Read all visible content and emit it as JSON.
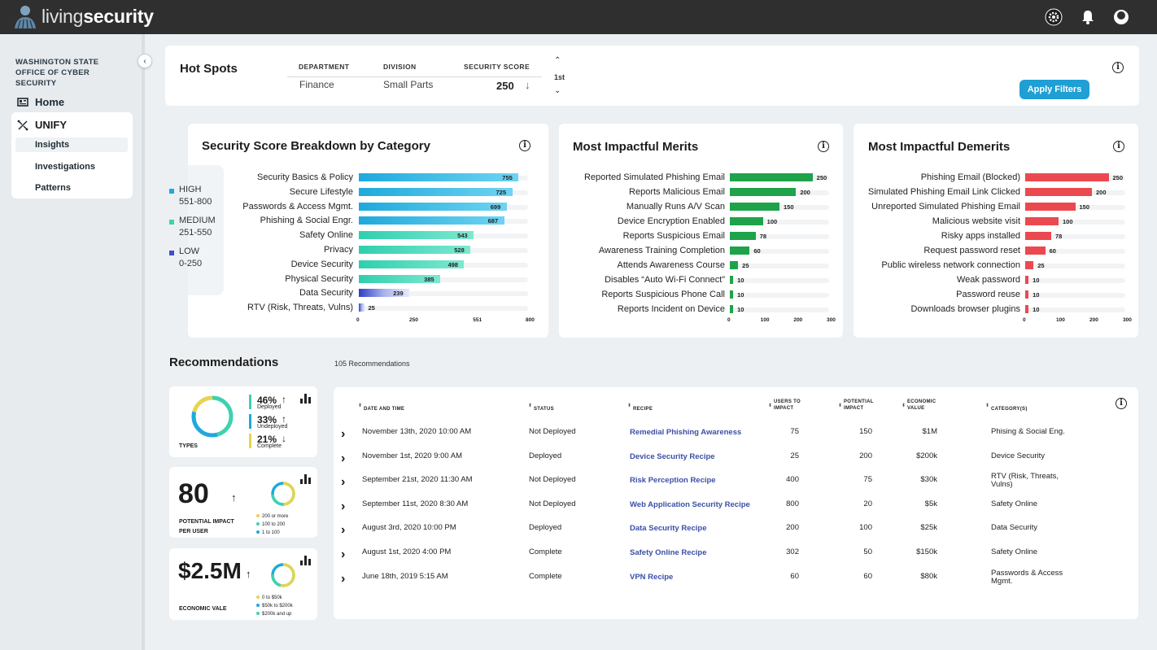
{
  "header": {
    "logo_light": "living",
    "logo_bold": "security",
    "icons": [
      "gear-icon",
      "bell-icon",
      "user-icon"
    ]
  },
  "sidebar": {
    "org": "WASHINGTON STATE OFFICE OF CYBER SECURITY",
    "home": "Home",
    "unify": "UNIFY",
    "items": [
      "Insights",
      "Investigations",
      "Patterns"
    ],
    "active": "Insights"
  },
  "hotspots": {
    "title": "Hot Spots",
    "headers": [
      "DEPARTMENT",
      "DIVISION",
      "SECURITY SCORE"
    ],
    "department": "Finance",
    "division": "Small Parts",
    "score": "250",
    "rank": "1st",
    "apply": "Apply Filters"
  },
  "breakdown": {
    "title": "Security Score Breakdown by Category",
    "legend": [
      {
        "name": "HIGH",
        "range": "551-800",
        "color": "#1fa9dc"
      },
      {
        "name": "MEDIUM",
        "range": "251-550",
        "color": "#3ed1b0"
      },
      {
        "name": "LOW",
        "range": "0-250",
        "color": "#3b4fc9"
      }
    ],
    "ticks": [
      "0",
      "250",
      "551",
      "800"
    ],
    "max": 800,
    "items": [
      {
        "label": "Security Basics & Policy",
        "value": 755,
        "level": "high"
      },
      {
        "label": "Secure Lifestyle",
        "value": 725,
        "level": "high"
      },
      {
        "label": "Passwords & Access Mgmt.",
        "value": 699,
        "level": "high"
      },
      {
        "label": "Phishing & Social Engr.",
        "value": 687,
        "level": "high"
      },
      {
        "label": "Safety Online",
        "value": 543,
        "level": "medium"
      },
      {
        "label": "Privacy",
        "value": 528,
        "level": "medium"
      },
      {
        "label": "Device Security",
        "value": 498,
        "level": "medium"
      },
      {
        "label": "Physical Security",
        "value": 385,
        "level": "medium"
      },
      {
        "label": "Data Security",
        "value": 239,
        "level": "low"
      },
      {
        "label": "RTV (Risk, Threats, Vulns)",
        "value": 25,
        "level": "low"
      }
    ]
  },
  "merits": {
    "title": "Most Impactful Merits",
    "color": "#1fa34a",
    "max": 300,
    "ticks": [
      "0",
      "100",
      "200",
      "300"
    ],
    "items": [
      {
        "label": "Reported Simulated Phishing Email",
        "value": 250
      },
      {
        "label": "Reports Malicious Email",
        "value": 200
      },
      {
        "label": "Manually Runs A/V Scan",
        "value": 150
      },
      {
        "label": "Device Encryption Enabled",
        "value": 100
      },
      {
        "label": "Reports Suspicious Email",
        "value": 78
      },
      {
        "label": "Awareness Training Completion",
        "value": 60
      },
      {
        "label": "Attends Awareness Course",
        "value": 25
      },
      {
        "label": "Disables “Auto Wi-Fi Connect”",
        "value": 10
      },
      {
        "label": "Reports Suspicious Phone Call",
        "value": 10
      },
      {
        "label": "Reports Incident on Device",
        "value": 10
      }
    ]
  },
  "demerits": {
    "title": "Most Impactful Demerits",
    "color": "#ea4a4f",
    "max": 300,
    "ticks": [
      "0",
      "100",
      "200",
      "300"
    ],
    "items": [
      {
        "label": "Phishing Email (Blocked)",
        "value": 250
      },
      {
        "label": "Simulated Phishing Email Link Clicked",
        "value": 200
      },
      {
        "label": "Unreported Simulated Phishing Email",
        "value": 150
      },
      {
        "label": "Malicious website visit",
        "value": 100
      },
      {
        "label": "Risky apps installed",
        "value": 78
      },
      {
        "label": "Request password reset",
        "value": 60
      },
      {
        "label": "Public wireless network connection",
        "value": 25
      },
      {
        "label": "Weak password",
        "value": 10
      },
      {
        "label": "Password reuse",
        "value": 10
      },
      {
        "label": "Downloads browser plugins",
        "value": 10
      }
    ]
  },
  "recommendations": {
    "title": "Recommendations",
    "count": "105 Recommendations",
    "types": {
      "label": "TYPES",
      "stats": [
        {
          "pct": "46%",
          "dir": "↑",
          "label": "Deployed",
          "color": "#3ed1b0"
        },
        {
          "pct": "33%",
          "dir": "↑",
          "label": "Undeployed",
          "color": "#1fa9dc"
        },
        {
          "pct": "21%",
          "dir": "↓",
          "label": "Complete",
          "color": "#e6d44e"
        }
      ]
    },
    "impact": {
      "value": "80",
      "dir": "↑",
      "label1": "POTENTIAL IMPACT",
      "label2": "PER USER",
      "legend": [
        {
          "t": "200 or more",
          "c": "#e6d44e"
        },
        {
          "t": "100 to 200",
          "c": "#3ed1b0"
        },
        {
          "t": "1 to 100",
          "c": "#1fa9dc"
        }
      ]
    },
    "economic": {
      "value": "$2.5M",
      "dir": "↑",
      "label": "ECONOMIC VALE",
      "legend": [
        {
          "t": "0 to $50k",
          "c": "#e6d44e"
        },
        {
          "t": "$50k to $200k",
          "c": "#1fa9dc"
        },
        {
          "t": "$200k and up",
          "c": "#3ed1b0"
        }
      ]
    },
    "columns": [
      "DATE AND TIME",
      "STATUS",
      "RECIPE",
      "USERS TO IMPACT",
      "POTENTIAL IMPACT",
      "ECONOMIC VALUE",
      "CATEGORY(S)"
    ],
    "rows": [
      {
        "date": "November 13th, 2020 10:00 AM",
        "status": "Not Deployed",
        "recipe": "Remedial Phishing Awareness",
        "users": "75",
        "impact": "150",
        "value": "$1M",
        "category": "Phising & Social Eng."
      },
      {
        "date": "November 1st, 2020 9:00 AM",
        "status": "Deployed",
        "recipe": "Device Security Recipe",
        "users": "25",
        "impact": "200",
        "value": "$200k",
        "category": "Device Security"
      },
      {
        "date": "September 21st, 2020 11:30 AM",
        "status": "Not Deployed",
        "recipe": "Risk Perception Recipe",
        "users": "400",
        "impact": "75",
        "value": "$30k",
        "category": "RTV (Risk, Threats, Vulns)"
      },
      {
        "date": "September 11st, 2020 8:30 AM",
        "status": "Not Deployed",
        "recipe": "Web Application Security Recipe",
        "users": "800",
        "impact": "20",
        "value": "$5k",
        "category": "Safety Online"
      },
      {
        "date": "August 3rd, 2020 10:00 PM",
        "status": "Deployed",
        "recipe": "Data Security Recipe",
        "users": "200",
        "impact": "100",
        "value": "$25k",
        "category": "Data Security"
      },
      {
        "date": "August 1st, 2020 4:00 PM",
        "status": "Complete",
        "recipe": "Safety Online Recipe",
        "users": "302",
        "impact": "50",
        "value": "$150k",
        "category": "Safety Online"
      },
      {
        "date": "June 18th, 2019 5:15 AM",
        "status": "Complete",
        "recipe": "VPN Recipe",
        "users": "60",
        "impact": "60",
        "value": "$80k",
        "category": "Passwords & Access Mgmt."
      }
    ]
  }
}
